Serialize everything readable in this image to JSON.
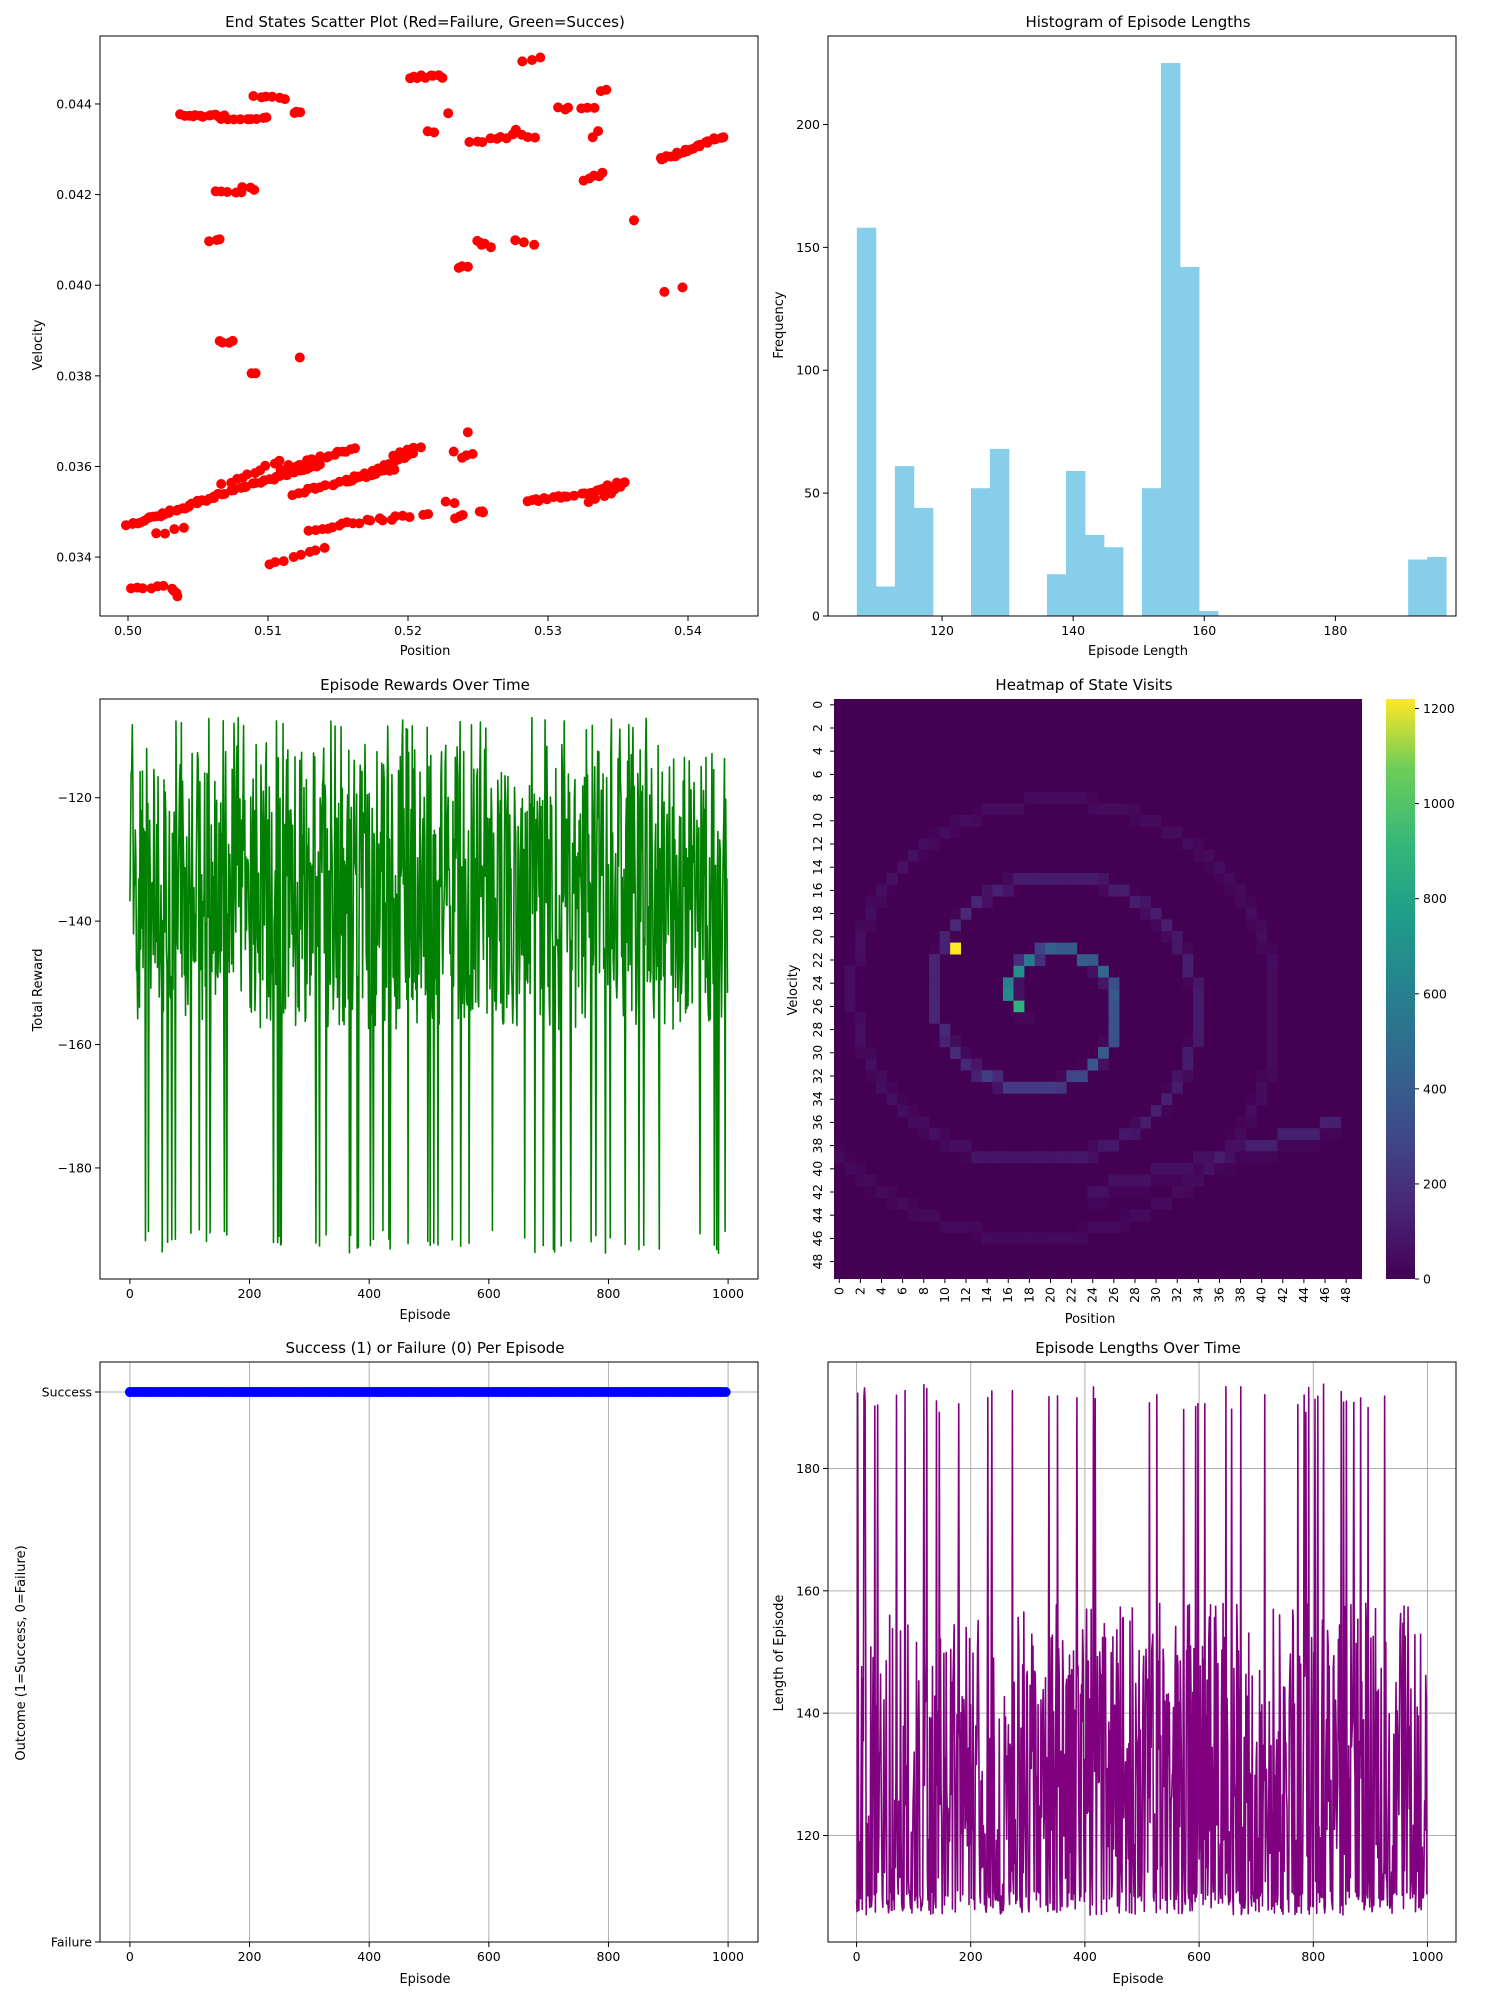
{
  "chart_data": [
    {
      "type": "scatter",
      "title": "End States Scatter Plot (Red=Failure, Green=Succes)",
      "xlabel": "Position",
      "ylabel": "Velocity",
      "xlim": [
        0.498,
        0.545
      ],
      "ylim": [
        0.0327,
        0.0455
      ],
      "xticks": [
        0.5,
        0.51,
        0.52,
        0.53,
        0.54
      ],
      "xtick_labels": [
        "0.50",
        "0.51",
        "0.52",
        "0.53",
        "0.54"
      ],
      "yticks": [
        0.034,
        0.036,
        0.038,
        0.04,
        0.042,
        0.044
      ],
      "ytick_labels": [
        "0.034",
        "0.036",
        "0.038",
        "0.040",
        "0.042",
        "0.044"
      ],
      "color": "#ff0000",
      "clusters": [
        {
          "x": [
            0.5038,
            0.5068
          ],
          "y": [
            0.04375,
            0.04375
          ],
          "n": 12
        },
        {
          "x": [
            0.5068,
            0.5085
          ],
          "y": [
            0.04365,
            0.04365
          ],
          "n": 5
        },
        {
          "x": [
            0.5085,
            0.51
          ],
          "y": [
            0.04368,
            0.04372
          ],
          "n": 5
        },
        {
          "x": [
            0.509,
            0.5112
          ],
          "y": [
            0.0442,
            0.0441
          ],
          "n": 6
        },
        {
          "x": [
            0.5118,
            0.5124
          ],
          "y": [
            0.04383,
            0.04383
          ],
          "n": 3
        },
        {
          "x": [
            0.5059,
            0.5065
          ],
          "y": [
            0.041,
            0.041
          ],
          "n": 3
        },
        {
          "x": [
            0.5063,
            0.508
          ],
          "y": [
            0.04207,
            0.04203
          ],
          "n": 5
        },
        {
          "x": [
            0.5083,
            0.509
          ],
          "y": [
            0.04213,
            0.04213
          ],
          "n": 3
        },
        {
          "x": [
            0.5065,
            0.5076
          ],
          "y": [
            0.03876,
            0.03876
          ],
          "n": 4
        },
        {
          "x": [
            0.5088,
            0.5092
          ],
          "y": [
            0.03808,
            0.03808
          ],
          "n": 2
        },
        {
          "x": [
            0.5122,
            0.5122
          ],
          "y": [
            0.03843,
            0.03843
          ],
          "n": 1
        },
        {
          "x": [
            0.52,
            0.5225
          ],
          "y": [
            0.0446,
            0.0446
          ],
          "n": 9
        },
        {
          "x": [
            0.5215,
            0.5218
          ],
          "y": [
            0.0434,
            0.0434
          ],
          "n": 2
        },
        {
          "x": [
            0.5228,
            0.5228
          ],
          "y": [
            0.04378,
            0.04378
          ],
          "n": 1
        },
        {
          "x": [
            0.5235,
            0.5242
          ],
          "y": [
            0.0404,
            0.0404
          ],
          "n": 3
        },
        {
          "x": [
            0.525,
            0.5258
          ],
          "y": [
            0.041,
            0.04085
          ],
          "n": 5
        },
        {
          "x": [
            0.5245,
            0.5275
          ],
          "y": [
            0.04315,
            0.0433
          ],
          "n": 8
        },
        {
          "x": [
            0.5278,
            0.529
          ],
          "y": [
            0.0434,
            0.04325
          ],
          "n": 4
        },
        {
          "x": [
            0.5278,
            0.529
          ],
          "y": [
            0.04097,
            0.04092
          ],
          "n": 3
        },
        {
          "x": [
            0.5283,
            0.5293
          ],
          "y": [
            0.04497,
            0.045
          ],
          "n": 3
        },
        {
          "x": [
            0.5308,
            0.5315
          ],
          "y": [
            0.0439,
            0.0439
          ],
          "n": 3
        },
        {
          "x": [
            0.5325,
            0.5333
          ],
          "y": [
            0.0439,
            0.0439
          ],
          "n": 3
        },
        {
          "x": [
            0.5338,
            0.5342
          ],
          "y": [
            0.04432,
            0.04432
          ],
          "n": 2
        },
        {
          "x": [
            0.5333,
            0.5336
          ],
          "y": [
            0.0433,
            0.04337
          ],
          "n": 2
        },
        {
          "x": [
            0.5324,
            0.534
          ],
          "y": [
            0.04233,
            0.04245
          ],
          "n": 5
        },
        {
          "x": [
            0.536,
            0.536
          ],
          "y": [
            0.04142,
            0.04142
          ],
          "n": 1
        },
        {
          "x": [
            0.5382,
            0.5382
          ],
          "y": [
            0.03985,
            0.03985
          ],
          "n": 1
        },
        {
          "x": [
            0.5395,
            0.5395
          ],
          "y": [
            0.03993,
            0.03993
          ],
          "n": 1
        },
        {
          "x": [
            0.538,
            0.5425
          ],
          "y": [
            0.04275,
            0.0433
          ],
          "n": 24
        },
        {
          "x": [
            0.5,
            0.506
          ],
          "y": [
            0.0347,
            0.0353
          ],
          "n": 28
        },
        {
          "x": [
            0.502,
            0.504
          ],
          "y": [
            0.03452,
            0.03462
          ],
          "n": 4
        },
        {
          "x": [
            0.5062,
            0.5138
          ],
          "y": [
            0.03535,
            0.03605
          ],
          "n": 30
        },
        {
          "x": [
            0.5068,
            0.5108
          ],
          "y": [
            0.0356,
            0.0361
          ],
          "n": 10
        },
        {
          "x": [
            0.511,
            0.5162
          ],
          "y": [
            0.03595,
            0.0364
          ],
          "n": 18
        },
        {
          "x": [
            0.5118,
            0.519
          ],
          "y": [
            0.0354,
            0.03595
          ],
          "n": 22
        },
        {
          "x": [
            0.5155,
            0.5205
          ],
          "y": [
            0.03565,
            0.0363
          ],
          "n": 14
        },
        {
          "x": [
            0.519,
            0.521
          ],
          "y": [
            0.03625,
            0.03645
          ],
          "n": 5
        },
        {
          "x": [
            0.513,
            0.515
          ],
          "y": [
            0.03458,
            0.0347
          ],
          "n": 6
        },
        {
          "x": [
            0.5153,
            0.52
          ],
          "y": [
            0.03473,
            0.0349
          ],
          "n": 12
        },
        {
          "x": [
            0.51,
            0.514
          ],
          "y": [
            0.03382,
            0.0342
          ],
          "n": 8
        },
        {
          "x": [
            0.5003,
            0.5025
          ],
          "y": [
            0.03328,
            0.03335
          ],
          "n": 6
        },
        {
          "x": [
            0.5032,
            0.5035
          ],
          "y": [
            0.0333,
            0.03315
          ],
          "n": 4
        },
        {
          "x": [
            0.5212,
            0.5213
          ],
          "y": [
            0.03495,
            0.03498
          ],
          "n": 2
        },
        {
          "x": [
            0.5228,
            0.5232
          ],
          "y": [
            0.0352,
            0.0352
          ],
          "n": 2
        },
        {
          "x": [
            0.5235,
            0.524
          ],
          "y": [
            0.03488,
            0.0349
          ],
          "n": 3
        },
        {
          "x": [
            0.525,
            0.5255
          ],
          "y": [
            0.03498,
            0.035
          ],
          "n": 3
        },
        {
          "x": [
            0.524,
            0.5245
          ],
          "y": [
            0.03622,
            0.03625
          ],
          "n": 3
        },
        {
          "x": [
            0.5242,
            0.5242
          ],
          "y": [
            0.03675,
            0.03675
          ],
          "n": 1
        },
        {
          "x": [
            0.5232,
            0.5232
          ],
          "y": [
            0.0363,
            0.0363
          ],
          "n": 1
        },
        {
          "x": [
            0.5285,
            0.5318
          ],
          "y": [
            0.03522,
            0.03538
          ],
          "n": 12
        },
        {
          "x": [
            0.5325,
            0.5355
          ],
          "y": [
            0.0354,
            0.03565
          ],
          "n": 14
        },
        {
          "x": [
            0.533,
            0.5353
          ],
          "y": [
            0.0352,
            0.03555
          ],
          "n": 6
        }
      ]
    },
    {
      "type": "bar",
      "title": "Histogram of Episode Lengths",
      "xlabel": "Episode Length",
      "ylabel": "Frequency",
      "xlim": [
        102.6,
        198.4
      ],
      "ylim": [
        0,
        236
      ],
      "xticks": [
        120,
        140,
        160,
        180
      ],
      "yticks": [
        0,
        50,
        100,
        150,
        200
      ],
      "color": "#87ceeb",
      "bin_start": 107,
      "bin_width": 2.9,
      "values": [
        158,
        12,
        61,
        44,
        0,
        0,
        52,
        68,
        0,
        0,
        17,
        59,
        33,
        28,
        0,
        52,
        225,
        142,
        2,
        0,
        0,
        0,
        0,
        0,
        0,
        0,
        0,
        0,
        0,
        23,
        24
      ]
    },
    {
      "type": "line",
      "title": "Episode Rewards Over Time",
      "xlabel": "Episode",
      "ylabel": "Total Reward",
      "xlim": [
        -50,
        1050
      ],
      "ylim": [
        -198,
        -104
      ],
      "xticks": [
        0,
        200,
        400,
        600,
        800,
        1000
      ],
      "yticks": [
        -120,
        -140,
        -160,
        -180
      ],
      "color": "#008000",
      "n_points": 1000,
      "value_range": [
        -194,
        -107
      ]
    },
    {
      "type": "heatmap",
      "title": "Heatmap of State Visits",
      "xlabel": "Position",
      "ylabel": "Velocity",
      "grid_size": 50,
      "tick_labels": [
        "0",
        "2",
        "4",
        "6",
        "8",
        "10",
        "12",
        "14",
        "16",
        "18",
        "20",
        "22",
        "24",
        "26",
        "28",
        "30",
        "32",
        "34",
        "36",
        "38",
        "40",
        "42",
        "44",
        "46",
        "48"
      ],
      "colorbar_ticks": [
        0,
        200,
        400,
        600,
        800,
        1000,
        1200
      ],
      "vmax": 1220,
      "colormap": "viridis",
      "spiral": {
        "center": [
          19,
          25
        ],
        "turns": 3.2,
        "peak_cell": [
          11,
          21
        ]
      }
    },
    {
      "type": "scatter",
      "title": "Success (1) or Failure (0) Per Episode",
      "xlabel": "Episode",
      "ylabel": "Outcome (1=Success, 0=Failure)",
      "xlim": [
        -50,
        1050
      ],
      "ylim": [
        -0.0,
        1.0
      ],
      "xticks": [
        0,
        200,
        400,
        600,
        800,
        1000
      ],
      "ytick_labels": [
        "Success",
        "Failure"
      ],
      "grid": true,
      "color": "#0000ff",
      "n_points": 1000,
      "value": 1
    },
    {
      "type": "line",
      "title": "Episode Lengths Over Time",
      "xlabel": "Episode",
      "ylabel": "Length of Episode",
      "xlim": [
        -50,
        1050
      ],
      "ylim": [
        102.6,
        197.4
      ],
      "xticks": [
        0,
        200,
        400,
        600,
        800,
        1000
      ],
      "yticks": [
        120,
        140,
        160,
        180
      ],
      "grid": true,
      "color": "#800080",
      "n_points": 1000,
      "value_range": [
        107,
        194
      ]
    }
  ]
}
